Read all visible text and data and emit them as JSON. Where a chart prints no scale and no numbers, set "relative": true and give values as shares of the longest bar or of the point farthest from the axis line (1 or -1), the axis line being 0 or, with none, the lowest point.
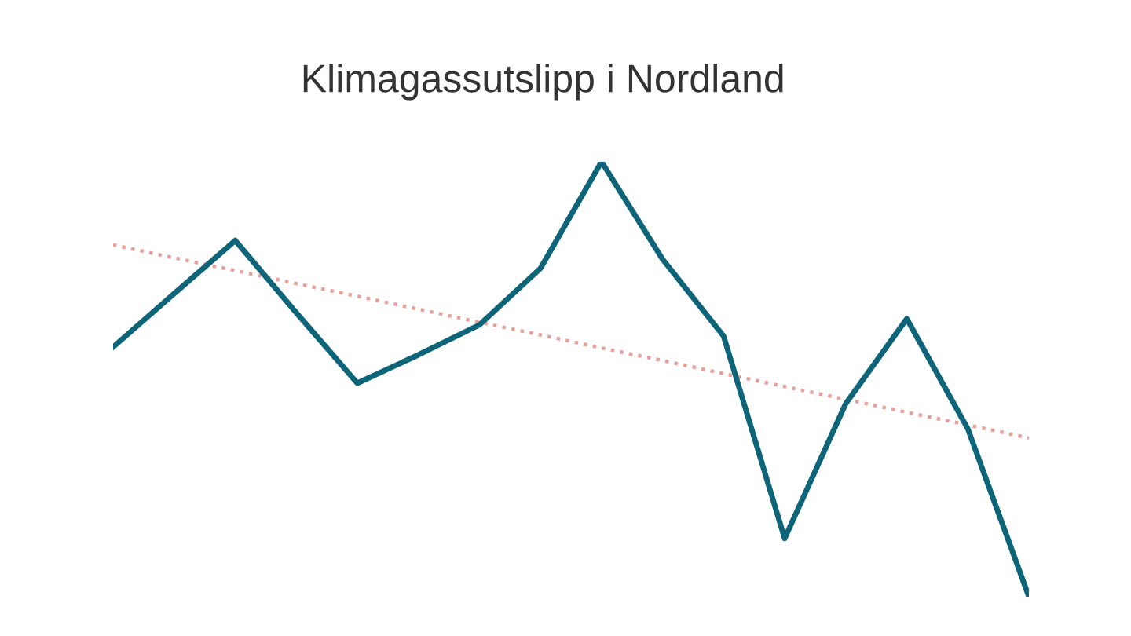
{
  "chart_data": {
    "type": "line",
    "title": "Klimagassutslipp i Nordland",
    "relative": true,
    "categories": [
      null,
      null,
      null,
      null,
      null,
      null,
      null,
      null,
      null,
      null,
      null,
      null,
      null,
      null,
      null,
      null
    ],
    "series": [
      {
        "color": "#0e6478",
        "values": [
          0.574,
          0.697,
          0.819,
          0.653,
          0.491,
          0.556,
          0.625,
          0.755,
          1,
          0.776,
          0.599,
          0.134,
          0.444,
          0.639,
          0.386,
          0
        ]
      },
      {
        "color": "#e8a09a",
        "line_style": "dotted",
        "values": [
          0.809,
          0.779,
          0.75,
          0.72,
          0.691,
          0.661,
          0.631,
          0.602,
          0.572,
          0.543,
          0.513,
          0.483,
          0.454,
          0.424,
          0.395,
          0.365
        ]
      }
    ],
    "grid": false,
    "legend": false
  }
}
